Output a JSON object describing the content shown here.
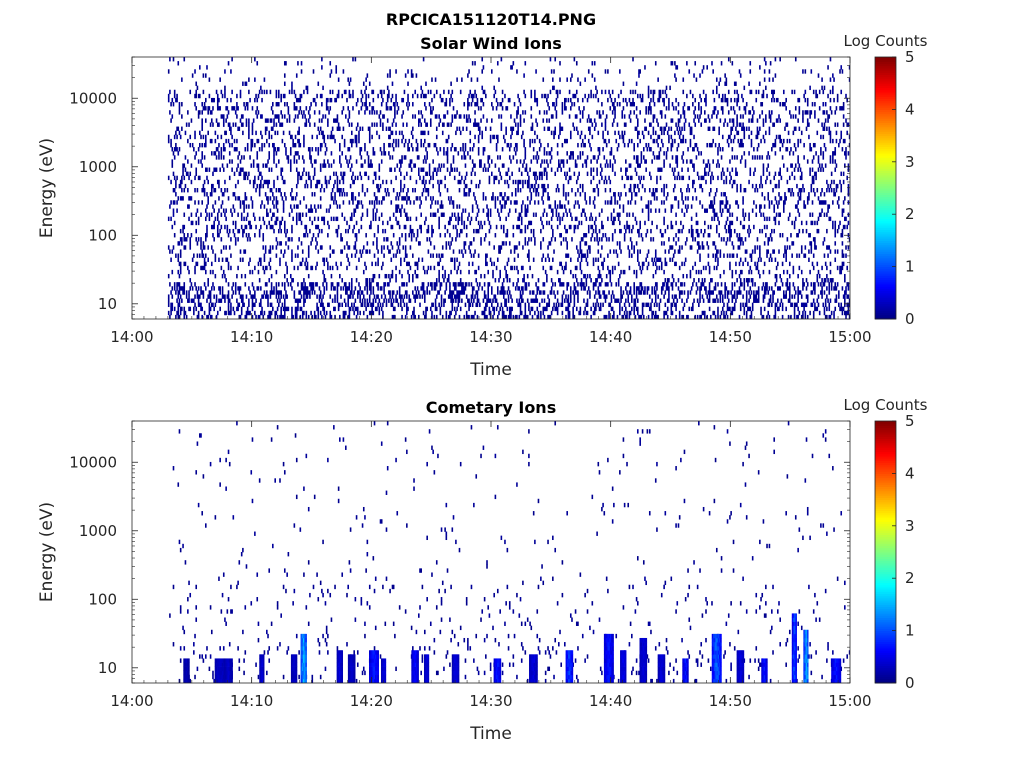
{
  "figure": {
    "title": "RPCICA151120T14.PNG"
  },
  "colorbar": {
    "title": "Log Counts",
    "ticks": [
      "0",
      "1",
      "2",
      "3",
      "4",
      "5"
    ],
    "range": [
      0,
      5
    ]
  },
  "chart_data": [
    {
      "type": "heatmap",
      "title": "Solar Wind Ions",
      "xlabel": "Time",
      "ylabel": "Energy (eV)",
      "y_scale": "log",
      "x_ticks": [
        "14:00",
        "14:10",
        "14:20",
        "14:30",
        "14:40",
        "14:50",
        "15:00"
      ],
      "y_ticks": [
        "10",
        "100",
        "1000",
        "10000"
      ],
      "xlim": [
        "14:00",
        "15:00"
      ],
      "ylim": [
        6,
        40000
      ],
      "data_time_range": [
        "14:03",
        "15:00"
      ],
      "colorbar_label": "Log Counts",
      "color_range": [
        0,
        5
      ],
      "description_values": "Sparse single-count detections (log counts ≈ 0) scattered from ~6 eV to ~40000 eV throughout 14:03–15:00; densest between ~100 eV and ~20000 eV"
    },
    {
      "type": "heatmap",
      "title": "Cometary Ions",
      "xlabel": "Time",
      "ylabel": "Energy (eV)",
      "y_scale": "log",
      "x_ticks": [
        "14:00",
        "14:10",
        "14:20",
        "14:30",
        "14:40",
        "14:50",
        "15:00"
      ],
      "y_ticks": [
        "10",
        "100",
        "1000",
        "10000"
      ],
      "xlim": [
        "14:00",
        "15:00"
      ],
      "ylim": [
        6,
        40000
      ],
      "data_time_range": [
        "14:03",
        "15:00"
      ],
      "colorbar_label": "Log Counts",
      "color_range": [
        0,
        5
      ],
      "bursts": [
        {
          "time": "14:04.5",
          "emax": 12,
          "level": 0.3
        },
        {
          "time": "14:07.3",
          "emax": 12,
          "level": 0.4
        },
        {
          "time": "14:08.0",
          "emax": 12,
          "level": 0.4
        },
        {
          "time": "14:10.8",
          "emax": 14,
          "level": 0.5
        },
        {
          "time": "14:13.5",
          "emax": 14,
          "level": 0.4
        },
        {
          "time": "14:14.3",
          "emax": 28,
          "level": 1.7
        },
        {
          "time": "14:17.3",
          "emax": 16,
          "level": 0.5
        },
        {
          "time": "14:18.3",
          "emax": 14,
          "level": 0.4
        },
        {
          "time": "14:20.2",
          "emax": 18,
          "level": 0.8
        },
        {
          "time": "14:21.0",
          "emax": 12,
          "level": 0.5
        },
        {
          "time": "14:23.6",
          "emax": 16,
          "level": 0.7
        },
        {
          "time": "14:24.6",
          "emax": 14,
          "level": 0.5
        },
        {
          "time": "14:27.0",
          "emax": 14,
          "level": 0.5
        },
        {
          "time": "14:30.5",
          "emax": 12,
          "level": 0.8
        },
        {
          "time": "14:33.5",
          "emax": 14,
          "level": 0.5
        },
        {
          "time": "14:36.5",
          "emax": 16,
          "level": 1.0
        },
        {
          "time": "14:39.8",
          "emax": 30,
          "level": 0.8
        },
        {
          "time": "14:41.0",
          "emax": 16,
          "level": 0.6
        },
        {
          "time": "14:42.7",
          "emax": 25,
          "level": 0.5
        },
        {
          "time": "14:44.2",
          "emax": 14,
          "level": 0.5
        },
        {
          "time": "14:46.2",
          "emax": 12,
          "level": 0.8
        },
        {
          "time": "14:48.8",
          "emax": 28,
          "level": 1.2
        },
        {
          "time": "14:50.8",
          "emax": 16,
          "level": 0.5
        },
        {
          "time": "14:52.8",
          "emax": 12,
          "level": 0.8
        },
        {
          "time": "14:55.3",
          "emax": 60,
          "level": 1.1
        },
        {
          "time": "14:56.3",
          "emax": 35,
          "level": 1.6
        },
        {
          "time": "14:58.8",
          "emax": 12,
          "level": 0.8
        }
      ]
    }
  ]
}
